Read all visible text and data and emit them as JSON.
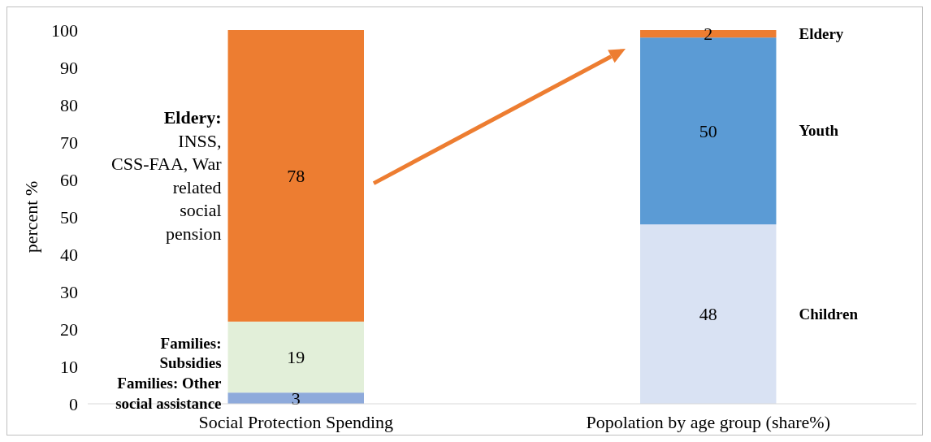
{
  "chart_data": {
    "type": "bar",
    "stacked": true,
    "ylabel": "percent %",
    "categories": [
      "Social Protection Spending",
      "Popolation by age group (share%)"
    ],
    "series": [
      {
        "name": "Families: Other social assistance",
        "color": "#8eaadb",
        "values": [
          3,
          null
        ]
      },
      {
        "name": "Families: Subsidies",
        "color": "#e2efd9",
        "values": [
          19,
          null
        ]
      },
      {
        "name": "Eldery: INSS, CSS-FAA, War related social pension",
        "color": "#ed7d31",
        "values": [
          78,
          null
        ]
      },
      {
        "name": "Children",
        "color": "#d9e2f3",
        "values": [
          null,
          48
        ]
      },
      {
        "name": "Youth",
        "color": "#5b9bd5",
        "values": [
          null,
          50
        ]
      },
      {
        "name": "Eldery",
        "color": "#ed7d31",
        "values": [
          null,
          2
        ]
      }
    ],
    "ylim": [
      0,
      100
    ],
    "yticks": [
      0,
      10,
      20,
      30,
      40,
      50,
      60,
      70,
      80,
      90,
      100
    ],
    "data_labels": true
  }
}
